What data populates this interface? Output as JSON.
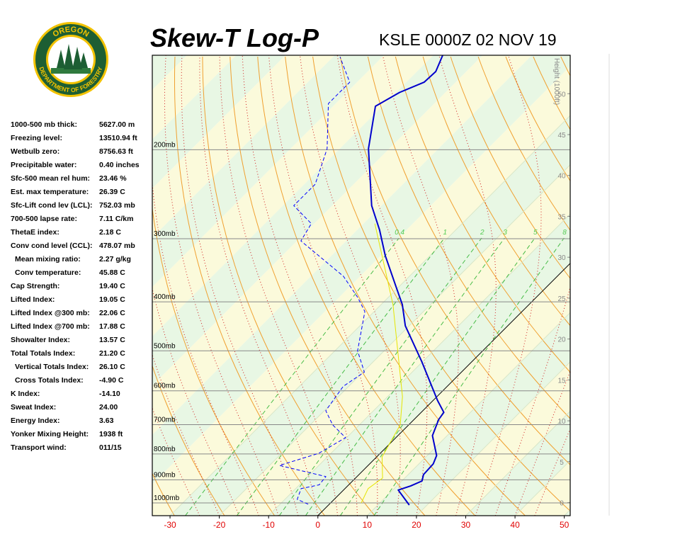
{
  "logo": {
    "top": "OREGON",
    "bottom": "DEPARTMENT OF FORESTRY"
  },
  "indices": [
    {
      "label": "1000-500 mb thick:",
      "value": "5627.00 m"
    },
    {
      "label": "Freezing level:",
      "value": "13510.94 ft"
    },
    {
      "label": "Wetbulb zero:",
      "value": "8756.63 ft"
    },
    {
      "label": "Precipitable water:",
      "value": "0.40 inches"
    },
    {
      "label": "Sfc-500 mean rel hum:",
      "value": "23.46 %"
    },
    {
      "label": "Est. max temperature:",
      "value": "26.39 C"
    },
    {
      "label": "Sfc-Lift cond lev (LCL):",
      "value": "752.03 mb"
    },
    {
      "label": "700-500 lapse rate:",
      "value": "7.11 C/km"
    },
    {
      "label": "ThetaE index:",
      "value": "2.18 C"
    },
    {
      "label": "Conv cond level (CCL):",
      "value": "478.07 mb",
      "details": [
        {
          "label": "Mean mixing ratio:",
          "value": "2.27 g/kg"
        },
        {
          "label": "Conv temperature:",
          "value": "45.88 C"
        }
      ]
    },
    {
      "label": "Cap Strength:",
      "value": "19.40 C"
    },
    {
      "label": "Lifted Index:",
      "value": "19.05 C"
    },
    {
      "label": "Lifted Index @300 mb:",
      "value": "22.06 C"
    },
    {
      "label": "Lifted Index @700 mb:",
      "value": "17.88 C"
    },
    {
      "label": "Showalter Index:",
      "value": "13.57 C"
    },
    {
      "label": "Total Totals Index:",
      "value": "21.20 C",
      "details": [
        {
          "label": "Vertical Totals Index:",
          "value": "26.10 C"
        },
        {
          "label": "Cross Totals Index:",
          "value": "-4.90 C"
        }
      ]
    },
    {
      "label": "K Index:",
      "value": "-14.10"
    },
    {
      "label": "Sweat Index:",
      "value": "24.00"
    },
    {
      "label": "Energy Index:",
      "value": "3.63"
    },
    {
      "label": "Yonker Mixing Height:",
      "value": "1938 ft"
    },
    {
      "label": "Transport wind:",
      "value": "011/15"
    }
  ],
  "chart_data": {
    "type": "skewt",
    "title": "Skew-T Log-P",
    "subtitle": "KSLE 0000Z 02 NOV 19",
    "xlim": [
      -33.6,
      51.2
    ],
    "xticks": [
      -30,
      -20,
      -10,
      0,
      10,
      20,
      30,
      40,
      50
    ],
    "ylim": [
      1060,
      130
    ],
    "log_y": true,
    "yticks": [
      {
        "value": 1000,
        "label": "1000mb"
      },
      {
        "value": 900,
        "label": "900mb"
      },
      {
        "value": 800,
        "label": "800mb"
      },
      {
        "value": 700,
        "label": "700mb"
      },
      {
        "value": 600,
        "label": "600mb"
      },
      {
        "value": 500,
        "label": "500mb"
      },
      {
        "value": 400,
        "label": "400mb"
      },
      {
        "value": 300,
        "label": "300mb"
      },
      {
        "value": 200,
        "label": "200mb"
      }
    ],
    "y2label": "Height (1000ft)",
    "y2lim": [
      -1.6,
      54.7
    ],
    "y2ticks": [
      0,
      5,
      10,
      15,
      20,
      25,
      30,
      35,
      40,
      45,
      50
    ],
    "mixing_ratios": [
      0.4,
      1,
      2,
      3,
      5,
      8
    ],
    "series": [
      {
        "color": "#0000cc",
        "dashed": false,
        "pressure": [
          1010,
          943,
          926,
          905,
          879,
          837,
          806,
          736,
          684,
          662,
          627,
          525,
          446,
          405,
          374,
          324,
          288,
          258,
          199,
          164,
          154,
          147,
          140,
          130
        ],
        "values": [
          16.4,
          11.1,
          12.8,
          14.1,
          13.1,
          12.9,
          11.9,
          7.0,
          5.0,
          4.6,
          0.9,
          -10.2,
          -20.8,
          -25.7,
          -30.5,
          -39.1,
          -45.5,
          -52.0,
          -64.2,
          -71.4,
          -69.3,
          -66.4,
          -66.2,
          -68.1
        ]
      },
      {
        "color": "#0000ff",
        "dashed": true,
        "pressure": [
          1006,
          984,
          937,
          921,
          887,
          843,
          798,
          743,
          701,
          657,
          588,
          551,
          500,
          418,
          392,
          356,
          303,
          280,
          258,
          234,
          199,
          162,
          147,
          131
        ],
        "values": [
          -4.3,
          -7.5,
          -8.9,
          -6.0,
          -6.3,
          -18.0,
          -12.5,
          -10.2,
          -15.4,
          -19.7,
          -21.1,
          -19.7,
          -25.4,
          -31.9,
          -36.2,
          -43.4,
          -59.2,
          -60.6,
          -67.8,
          -67.8,
          -72.6,
          -81.5,
          -81.5,
          -88.6
        ]
      },
      {
        "color": "#e5e500",
        "dashed": false,
        "pressure": [
          1000,
          937,
          893,
          811,
          701,
          616,
          405,
          280
        ],
        "values": [
          6.2,
          4.7,
          5.5,
          1.1,
          -1.7,
          -7.0,
          -27.6,
          -47.7
        ]
      }
    ]
  }
}
